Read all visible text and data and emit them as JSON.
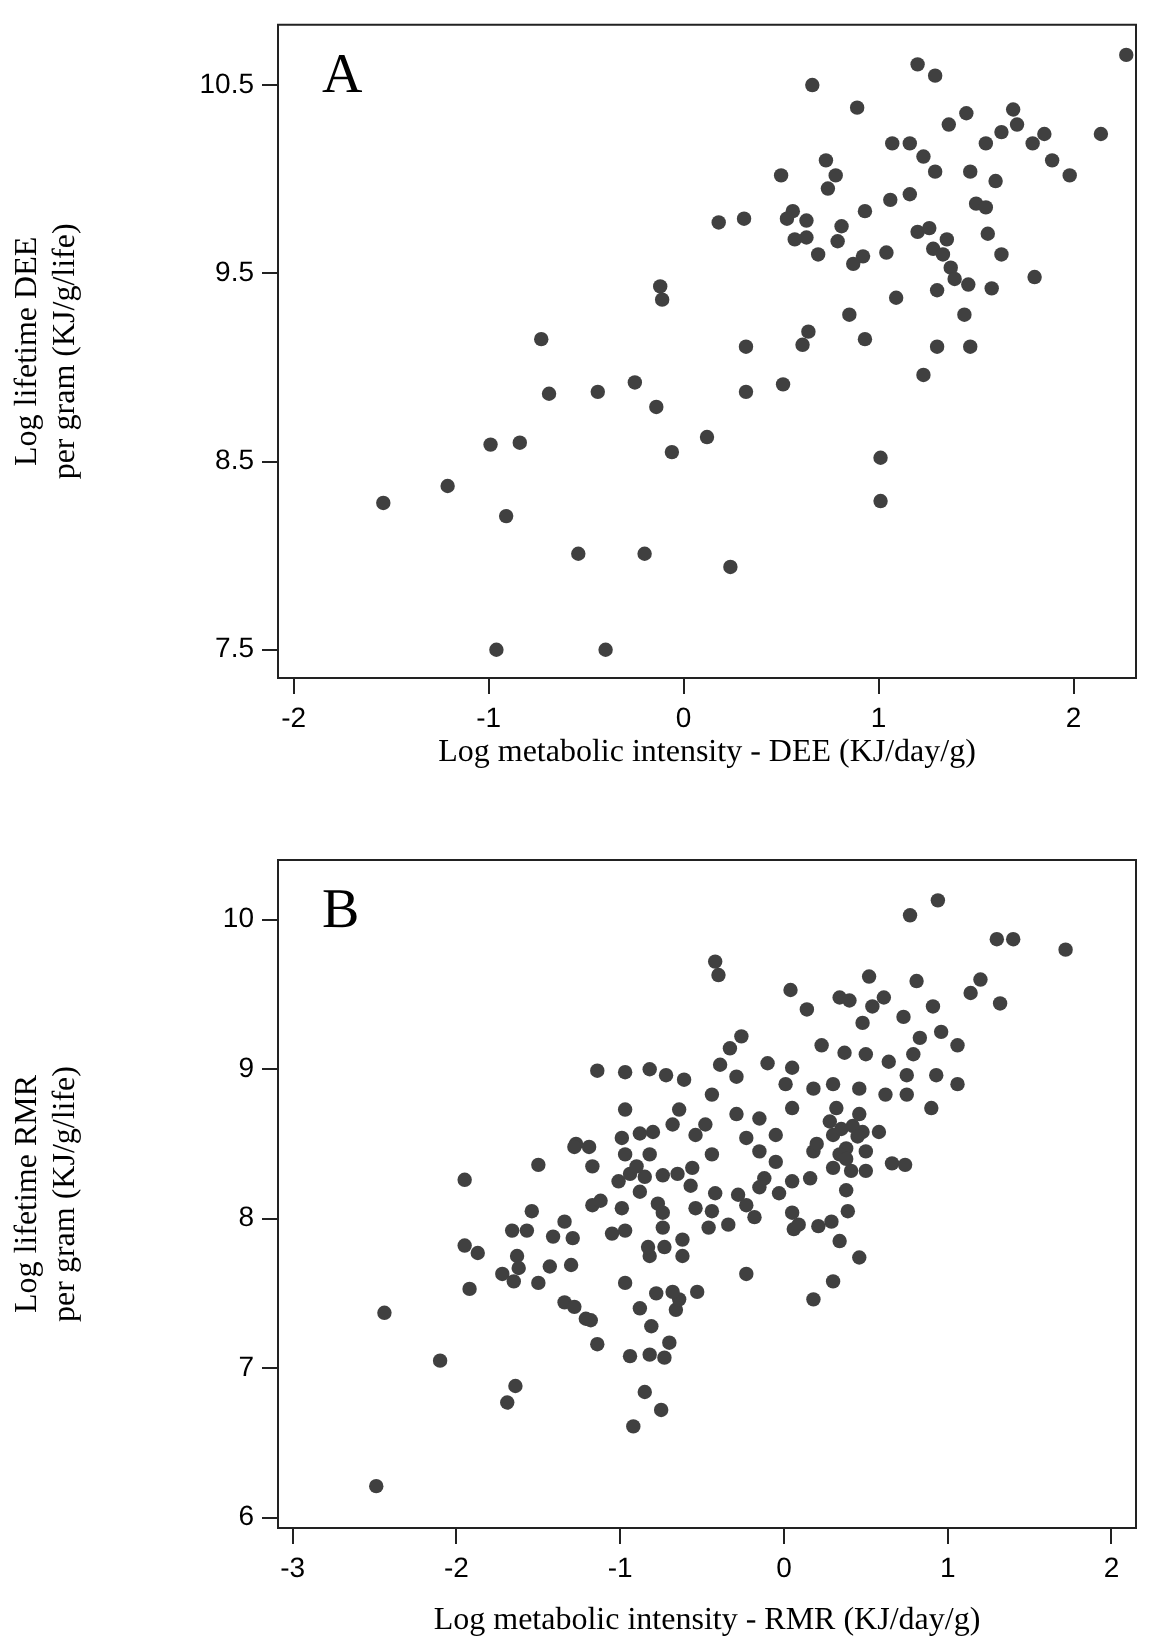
{
  "chart_data": [
    {
      "type": "scatter",
      "xlabel": "Log metabolic intensity - DEE (KJ/day/g)",
      "ylabel": "Log lifetime DEE per gram (KJ/g/life)",
      "annotations": [
        "A"
      ],
      "marker": "circle",
      "xlim": [
        -2.08,
        2.32
      ],
      "ylim": [
        7.35,
        10.82
      ],
      "xticks": [
        -2,
        -1,
        0,
        1,
        2
      ],
      "yticks": [
        7.5,
        8.5,
        9.5,
        10.5
      ],
      "series": [
        {
          "color": "#404040",
          "x": [
            2.27,
            1.2,
            1.29,
            0.66,
            0.89,
            1.45,
            1.69,
            1.36,
            1.71,
            1.63,
            1.85,
            1.55,
            1.79,
            2.14,
            1.07,
            1.16,
            1.23,
            1.89,
            1.98,
            1.29,
            1.47,
            1.6,
            0.73,
            0.78,
            0.5,
            0.74,
            1.16,
            1.06,
            0.93,
            1.5,
            1.55,
            0.18,
            0.31,
            0.56,
            0.53,
            0.63,
            0.81,
            0.57,
            0.63,
            0.79,
            1.2,
            1.26,
            1.35,
            1.56,
            0.69,
            0.87,
            0.92,
            1.04,
            1.28,
            1.33,
            1.63,
            1.37,
            1.39,
            1.46,
            1.58,
            1.8,
            1.3,
            1.09,
            -0.12,
            -0.11,
            0.85,
            1.44,
            0.64,
            0.61,
            0.93,
            0.32,
            1.3,
            1.47,
            1.23,
            -0.73,
            -0.69,
            -0.44,
            -0.25,
            -0.14,
            0.32,
            0.51,
            -0.99,
            -0.84,
            0.12,
            -0.06,
            1.01,
            1.01,
            -1.54,
            -1.21,
            -0.91,
            -0.54,
            -0.2,
            0.24,
            -0.96,
            -0.4
          ],
          "values": [
            10.66,
            10.61,
            10.55,
            10.5,
            10.38,
            10.35,
            10.37,
            10.29,
            10.29,
            10.25,
            10.24,
            10.19,
            10.19,
            10.24,
            10.19,
            10.19,
            10.12,
            10.1,
            10.02,
            10.04,
            10.04,
            9.99,
            10.1,
            10.02,
            10.02,
            9.95,
            9.92,
            9.89,
            9.83,
            9.87,
            9.85,
            9.77,
            9.79,
            9.83,
            9.79,
            9.78,
            9.75,
            9.68,
            9.69,
            9.67,
            9.72,
            9.74,
            9.68,
            9.71,
            9.6,
            9.55,
            9.59,
            9.61,
            9.63,
            9.6,
            9.6,
            9.53,
            9.47,
            9.44,
            9.42,
            9.48,
            9.41,
            9.37,
            9.43,
            9.36,
            9.28,
            9.28,
            9.19,
            9.12,
            9.15,
            9.11,
            9.11,
            9.11,
            8.96,
            9.15,
            8.86,
            8.87,
            8.92,
            8.79,
            8.87,
            8.91,
            8.59,
            8.6,
            8.63,
            8.55,
            8.52,
            8.29,
            8.28,
            8.37,
            8.21,
            8.01,
            8.01,
            7.94,
            7.5,
            7.5
          ]
        }
      ]
    },
    {
      "type": "scatter",
      "xlabel": "Log metabolic intensity - RMR (KJ/day/g)",
      "ylabel": "Log lifetime RMR per gram (KJ/g/life)",
      "annotations": [
        "B"
      ],
      "marker": "circle",
      "xlim": [
        -3.09,
        2.15
      ],
      "ylim": [
        5.93,
        10.4
      ],
      "xticks": [
        -3,
        -2,
        -1,
        0,
        1,
        2
      ],
      "yticks": [
        6,
        7,
        8,
        9,
        10
      ],
      "series": [
        {
          "color": "#404040",
          "x": [
            0.94,
            0.77,
            1.3,
            1.4,
            1.72,
            -0.42,
            -0.4,
            1.2,
            1.14,
            1.32,
            0.52,
            0.81,
            0.04,
            0.34,
            0.4,
            0.61,
            0.54,
            0.14,
            0.91,
            0.73,
            0.48,
            0.96,
            0.83,
            1.06,
            -0.26,
            -0.33,
            -0.39,
            -0.29,
            0.23,
            0.37,
            0.5,
            0.79,
            -0.1,
            0.05,
            0.64,
            0.75,
            0.93,
            1.06,
            -1.14,
            -0.97,
            -0.82,
            -0.72,
            -0.61,
            -0.44,
            0.01,
            0.18,
            0.3,
            0.46,
            0.62,
            0.75,
            0.9,
            -0.97,
            -0.64,
            -0.29,
            -0.15,
            -0.68,
            -0.48,
            0.05,
            0.32,
            0.46,
            0.58,
            -0.8,
            -0.99,
            -0.88,
            -1.27,
            -1.19,
            -0.54,
            -0.23,
            -0.05,
            0.3,
            0.38,
            0.48,
            -0.44,
            -0.97,
            -0.82,
            -2.49,
            -2.44,
            -2.1,
            -1.95,
            -1.95,
            -1.87,
            -1.92,
            -1.69,
            -1.64,
            -1.72,
            -1.66,
            -1.63,
            -1.62,
            -1.65,
            -1.54,
            -1.57,
            -1.5,
            -1.5,
            -1.43,
            -1.41,
            -1.34,
            -1.29,
            -1.3,
            -1.34,
            -1.28,
            -1.21,
            -1.18,
            -1.14,
            -1.28,
            -1.17,
            -1.17,
            -1.12,
            -1.05,
            -0.97,
            -1.01,
            -0.99,
            -0.94,
            -0.88,
            -0.97,
            -0.94,
            -0.92,
            -0.88,
            -0.85,
            -0.82,
            -0.82,
            -0.83,
            -0.78,
            -0.81,
            -0.73,
            -0.75,
            -0.7,
            -0.66,
            -0.64,
            -0.68,
            -0.62,
            -0.62,
            -0.73,
            -0.74,
            -0.74,
            -0.77,
            -0.74,
            -0.56,
            -0.54,
            -0.57,
            -0.46,
            -0.44,
            -0.42,
            -0.34,
            -0.28,
            -0.23,
            -0.18,
            -0.53,
            -0.23,
            -0.12,
            -0.03,
            0.05,
            0.06,
            0.09,
            0.21,
            0.29,
            0.3,
            0.18,
            0.34,
            0.39,
            0.38,
            0.46,
            0.5,
            0.66,
            0.74,
            -0.15,
            0.18,
            0.34,
            0.05,
            -0.15,
            -0.05,
            0.3,
            0.41,
            0.16,
            0.35,
            0.42,
            0.28,
            0.45,
            0.2,
            0.38,
            0.5,
            -0.65,
            -0.85,
            -0.9
          ],
          "values": [
            10.13,
            10.03,
            9.87,
            9.87,
            9.8,
            9.72,
            9.63,
            9.6,
            9.51,
            9.44,
            9.62,
            9.59,
            9.53,
            9.48,
            9.46,
            9.48,
            9.42,
            9.4,
            9.42,
            9.35,
            9.31,
            9.25,
            9.21,
            9.16,
            9.22,
            9.14,
            9.03,
            8.95,
            9.16,
            9.11,
            9.1,
            9.1,
            9.04,
            9.01,
            9.05,
            8.96,
            8.96,
            8.9,
            8.99,
            8.98,
            9.0,
            8.96,
            8.93,
            8.83,
            8.9,
            8.87,
            8.9,
            8.87,
            8.83,
            8.83,
            8.74,
            8.73,
            8.73,
            8.7,
            8.67,
            8.63,
            8.63,
            8.74,
            8.74,
            8.7,
            8.58,
            8.58,
            8.54,
            8.57,
            8.5,
            8.48,
            8.56,
            8.54,
            8.56,
            8.56,
            8.47,
            8.58,
            8.43,
            8.43,
            8.43,
            6.21,
            7.37,
            7.05,
            8.26,
            7.82,
            7.77,
            7.53,
            6.77,
            6.88,
            7.63,
            7.92,
            7.75,
            7.67,
            7.58,
            8.05,
            7.92,
            8.36,
            7.57,
            7.68,
            7.88,
            7.98,
            7.87,
            7.69,
            7.44,
            7.41,
            7.33,
            7.32,
            7.16,
            8.48,
            8.35,
            8.09,
            8.12,
            7.9,
            7.92,
            8.25,
            8.07,
            8.3,
            8.18,
            7.57,
            7.08,
            6.61,
            7.4,
            6.84,
            7.09,
            7.75,
            7.81,
            7.5,
            7.28,
            7.07,
            6.72,
            7.17,
            7.39,
            7.46,
            7.51,
            7.86,
            7.75,
            7.81,
            7.94,
            8.04,
            8.1,
            8.29,
            8.34,
            8.07,
            8.22,
            7.94,
            8.05,
            8.17,
            7.96,
            8.16,
            8.09,
            8.01,
            7.51,
            7.63,
            8.27,
            8.17,
            8.04,
            7.93,
            7.96,
            7.95,
            7.98,
            7.58,
            7.46,
            7.85,
            8.05,
            8.19,
            7.74,
            8.32,
            8.37,
            8.36,
            8.45,
            8.45,
            8.43,
            8.25,
            8.21,
            8.38,
            8.34,
            8.32,
            8.27,
            8.6,
            8.62,
            8.65,
            8.55,
            8.5,
            8.4,
            8.45,
            8.3,
            8.28,
            8.35
          ]
        }
      ]
    }
  ]
}
